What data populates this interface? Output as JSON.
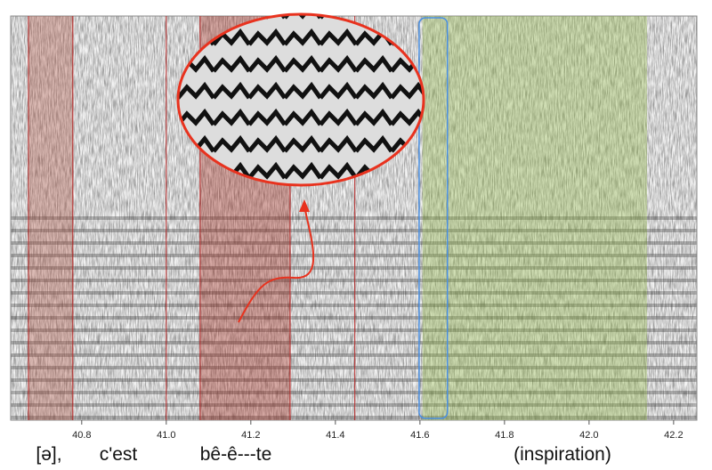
{
  "chart_data": {
    "type": "spectrogram",
    "xlim": [
      40.632,
      42.255
    ],
    "xticks": [
      40.8,
      {
        "value": 41,
        "label": "41.0"
      },
      41.2,
      41.4,
      41.6,
      41.8,
      {
        "value": 42,
        "label": "42.0"
      },
      42.2
    ],
    "boundaries": [
      40.674,
      40.779,
      41.0,
      41.08,
      41.293,
      41.446
    ],
    "boundary_color": "#b22222",
    "regions": [
      {
        "start": 40.674,
        "end": 40.779,
        "color": "#b05040"
      },
      {
        "start": 41.08,
        "end": 41.293,
        "color": "#a02010"
      },
      {
        "start": 41.606,
        "end": 42.137,
        "color": "#90b840"
      }
    ],
    "highlight": {
      "start": 41.598,
      "end": 41.665,
      "color": "#4a90e2"
    },
    "words": [
      "[ə],",
      "c'est",
      "bê-ê---te",
      "(inspiration)"
    ]
  }
}
